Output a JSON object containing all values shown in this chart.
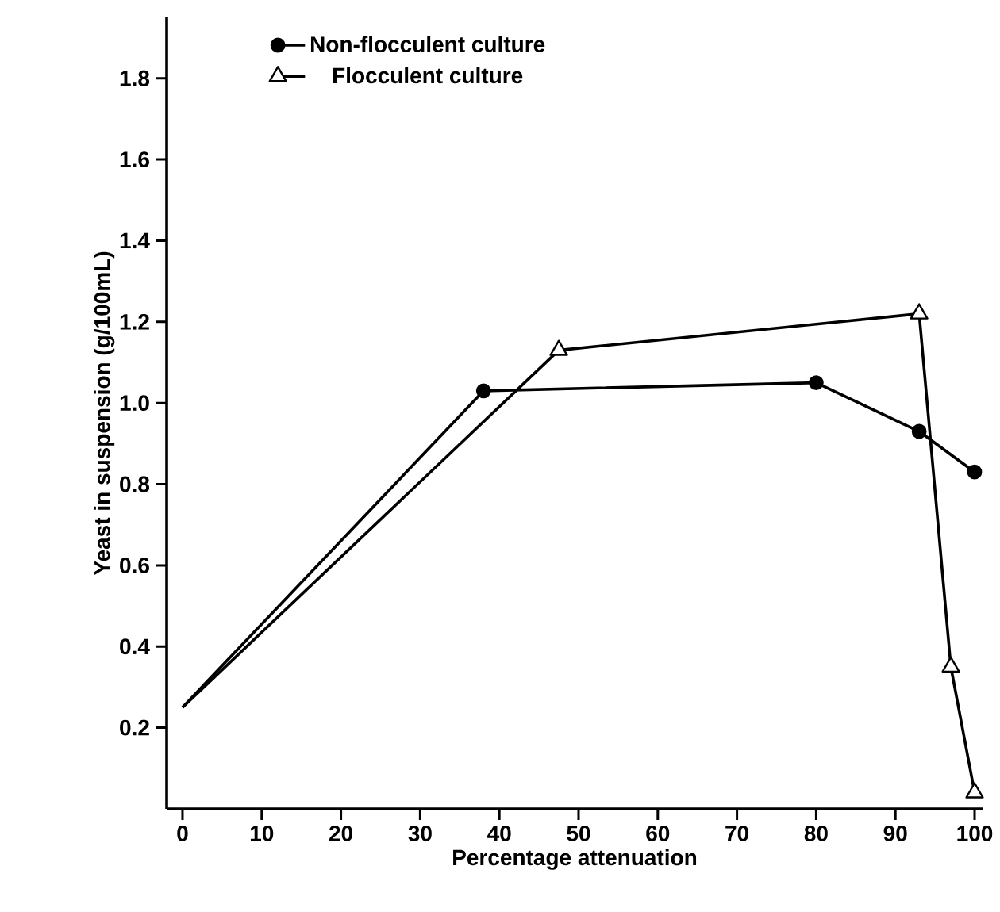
{
  "chart_data": {
    "type": "line",
    "xlabel": "Percentage attenuation",
    "ylabel": "Yeast in suspension (g/100mL)",
    "xlim": [
      -2,
      101
    ],
    "ylim": [
      0,
      1.95
    ],
    "xticks": [
      0,
      10,
      20,
      30,
      40,
      50,
      60,
      70,
      80,
      90,
      100
    ],
    "yticks": [
      0.2,
      0.4,
      0.6,
      0.8,
      {
        "value": 1.0,
        "label": "1.0"
      },
      1.2,
      1.4,
      1.6,
      1.8
    ],
    "legend": "top left",
    "grid": false,
    "line_style": "solid",
    "series": [
      {
        "name": "Non-flocculent culture",
        "color": "#000000",
        "marker": "circle",
        "x": [
          0,
          38,
          80,
          93,
          100
        ],
        "values": [
          0.25,
          1.03,
          1.05,
          0.93,
          0.83
        ]
      },
      {
        "name": "Flocculent culture",
        "color": "#000000",
        "marker": "triangle",
        "x": [
          0,
          47.5,
          93,
          97,
          100
        ],
        "values": [
          0.25,
          1.13,
          1.22,
          0.35,
          0.04
        ]
      }
    ]
  }
}
